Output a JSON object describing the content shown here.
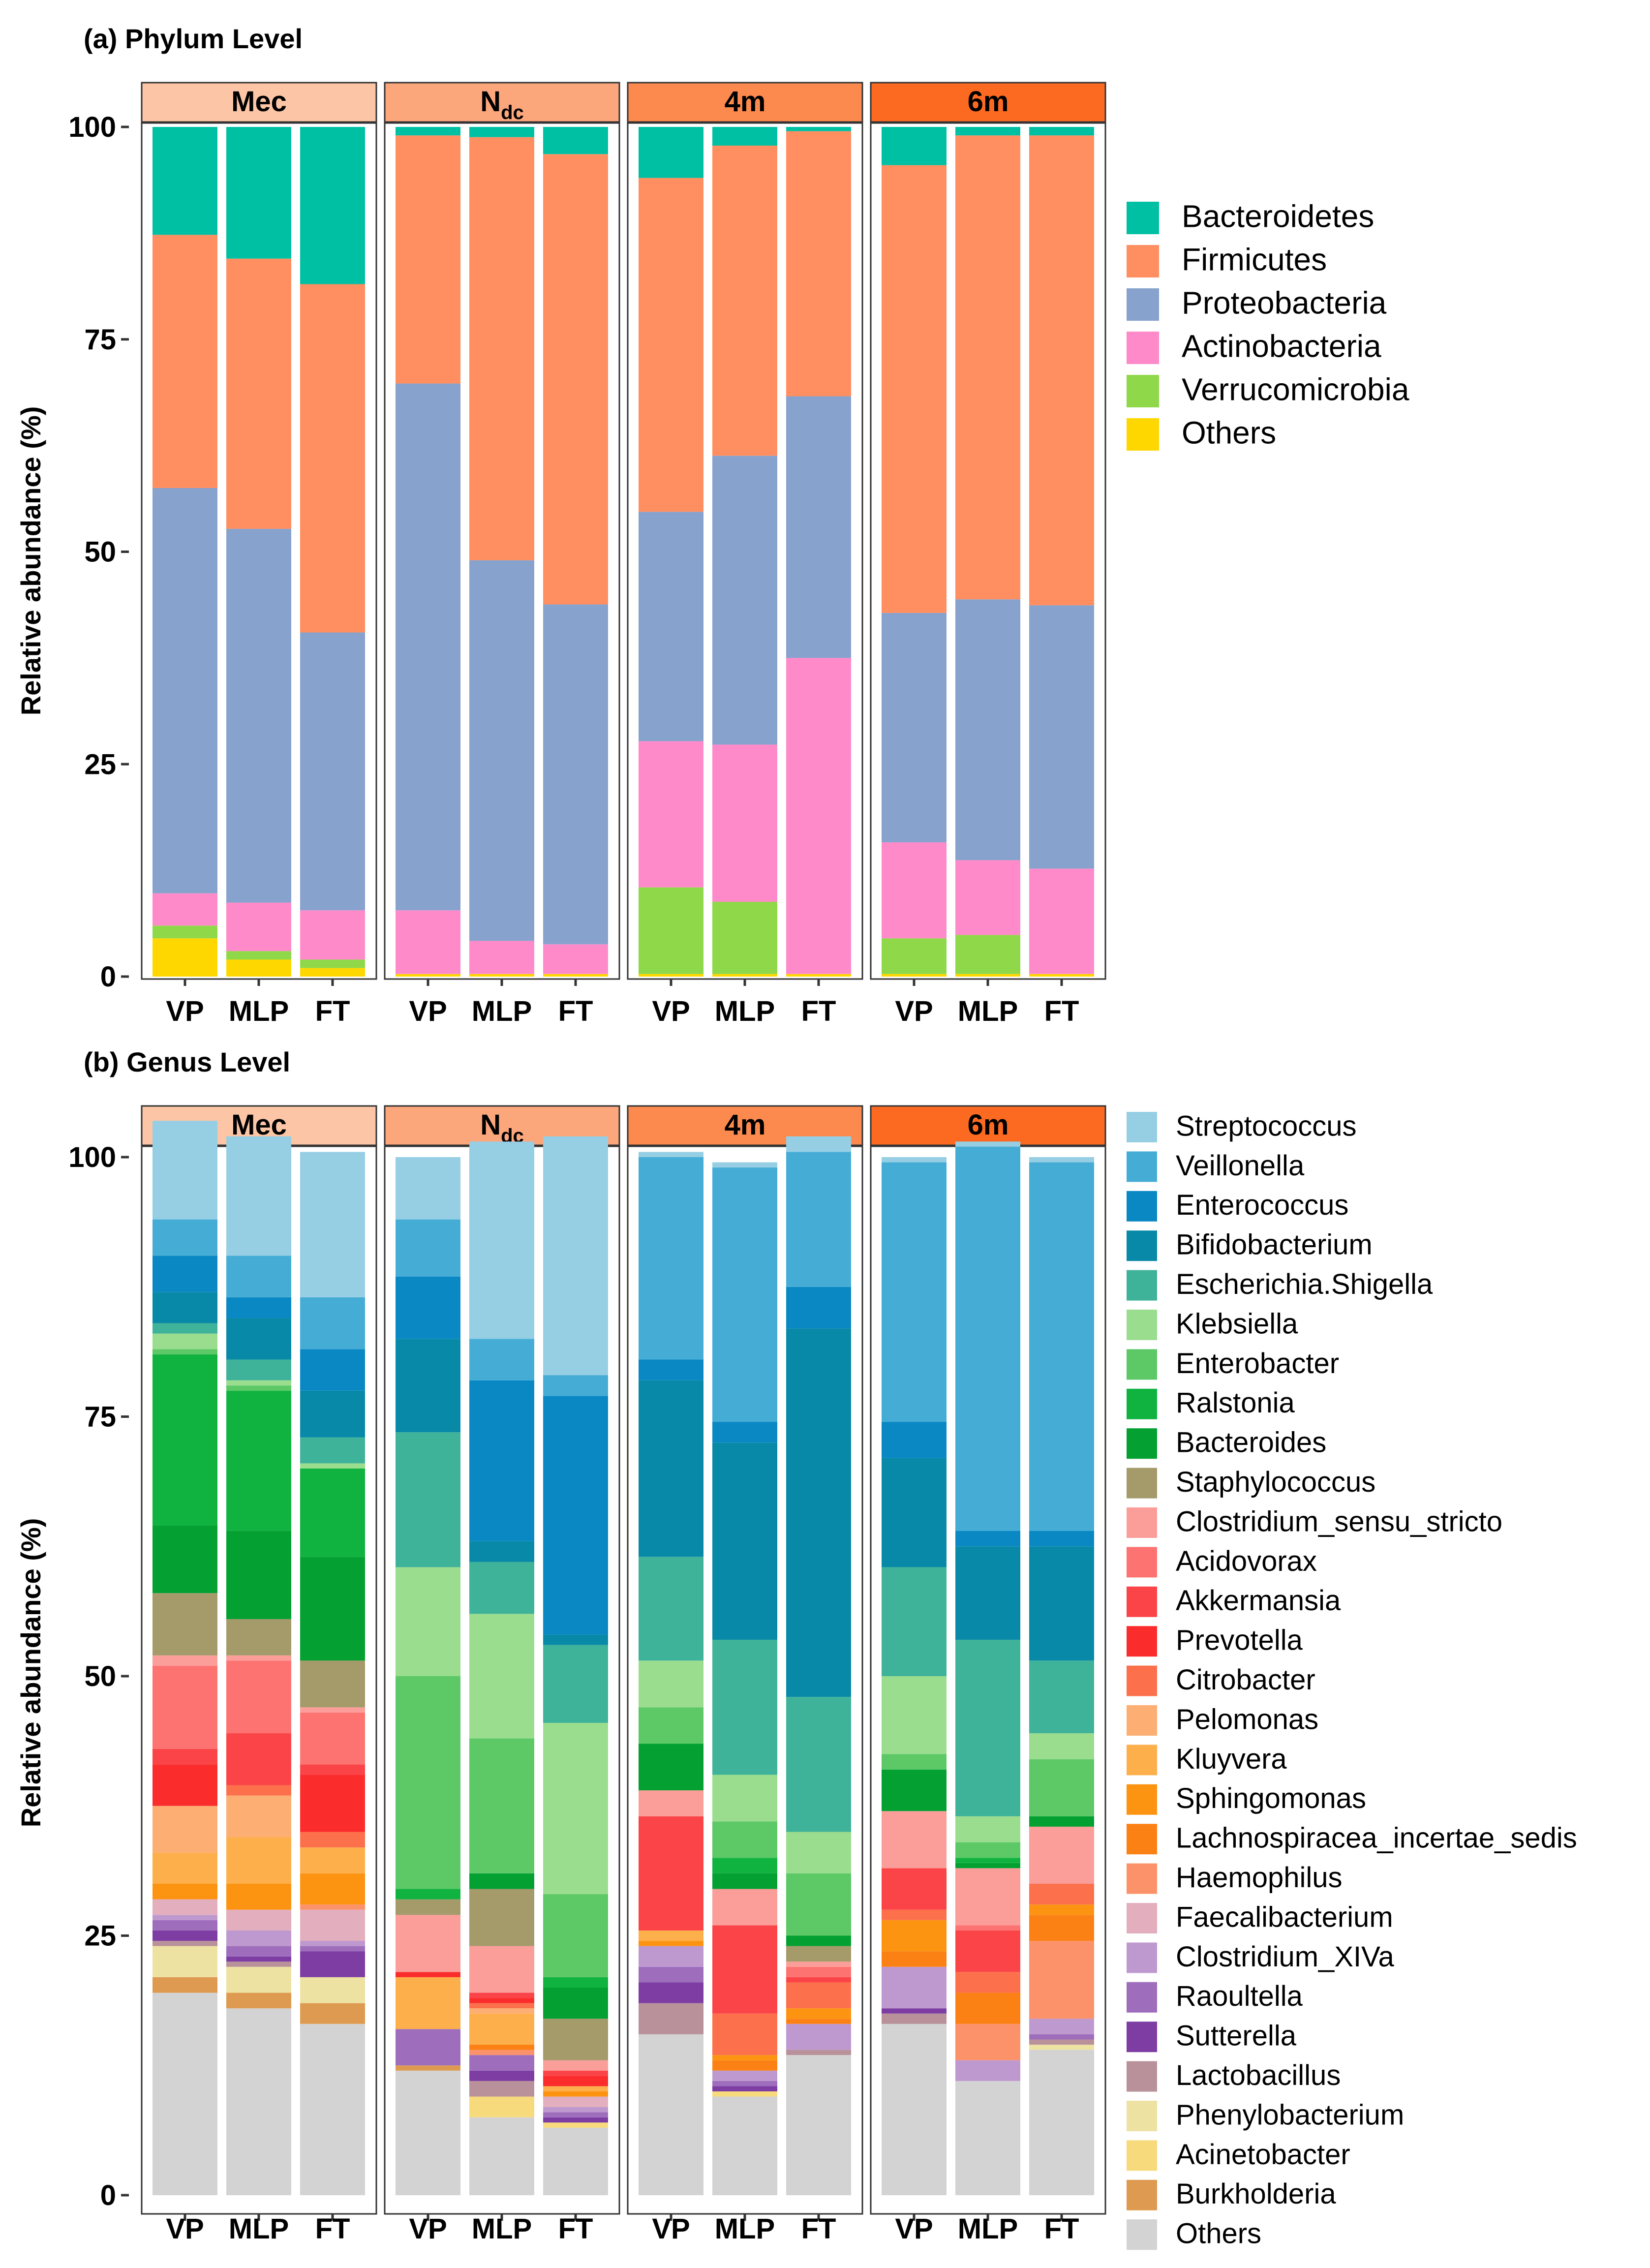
{
  "panels": {
    "a": {
      "title": "(a) Phylum Level"
    },
    "b": {
      "title": "(b) Genus Level"
    }
  },
  "facet_colors": [
    "#FCC6A6",
    "#FCA67C",
    "#FC8A4E",
    "#FC6A22"
  ],
  "chart_data": [
    {
      "type": "bar",
      "stacked": true,
      "title": "(a) Phylum Level",
      "ylabel": "Relative abundance (%)",
      "ylim": [
        0,
        100
      ],
      "yticks": [
        0,
        25,
        50,
        75,
        100
      ],
      "facets": [
        {
          "label": "Mec",
          "sub": ""
        },
        {
          "label": "N",
          "sub": "dc"
        },
        {
          "label": "4m",
          "sub": ""
        },
        {
          "label": "6m",
          "sub": ""
        }
      ],
      "categories": [
        "VP",
        "MLP",
        "FT"
      ],
      "legend": {
        "position": "right",
        "taxa": [
          "Bacteroidetes",
          "Firmicutes",
          "Proteobacteria",
          "Actinobacteria",
          "Verrucomicrobia",
          "Others"
        ]
      },
      "colors": {
        "Others": "#FFD700",
        "Verrucomicrobia": "#8FD84A",
        "Actinobacteria": "#FF8AC9",
        "Proteobacteria": "#87A2CD",
        "Firmicutes": "#FF8E60",
        "Bacteroidetes": "#00C0A3"
      },
      "stack_order": [
        "Others",
        "Verrucomicrobia",
        "Actinobacteria",
        "Proteobacteria",
        "Firmicutes",
        "Bacteroidetes"
      ],
      "bars": [
        [
          {
            "Others": 4.5,
            "Verrucomicrobia": 1.5,
            "Actinobacteria": 3.8,
            "Proteobacteria": 47.7,
            "Firmicutes": 29.8,
            "Bacteroidetes": 12.7
          },
          {
            "Others": 2.0,
            "Verrucomicrobia": 1.0,
            "Actinobacteria": 5.7,
            "Proteobacteria": 44.0,
            "Firmicutes": 31.8,
            "Bacteroidetes": 15.5
          },
          {
            "Others": 1.0,
            "Verrucomicrobia": 1.0,
            "Actinobacteria": 5.8,
            "Proteobacteria": 32.7,
            "Firmicutes": 41.0,
            "Bacteroidetes": 18.5
          }
        ],
        [
          {
            "Others": 0.3,
            "Verrucomicrobia": 0.0,
            "Actinobacteria": 7.5,
            "Proteobacteria": 62.0,
            "Firmicutes": 29.2,
            "Bacteroidetes": 1.0
          },
          {
            "Others": 0.3,
            "Verrucomicrobia": 0.0,
            "Actinobacteria": 3.9,
            "Proteobacteria": 44.8,
            "Firmicutes": 49.8,
            "Bacteroidetes": 1.2
          },
          {
            "Others": 0.3,
            "Verrucomicrobia": 0.0,
            "Actinobacteria": 3.5,
            "Proteobacteria": 40.0,
            "Firmicutes": 53.0,
            "Bacteroidetes": 3.2
          }
        ],
        [
          {
            "Others": 0.3,
            "Verrucomicrobia": 10.2,
            "Actinobacteria": 17.2,
            "Proteobacteria": 27.0,
            "Firmicutes": 39.3,
            "Bacteroidetes": 6.0
          },
          {
            "Others": 0.3,
            "Verrucomicrobia": 8.5,
            "Actinobacteria": 18.5,
            "Proteobacteria": 34.0,
            "Firmicutes": 36.5,
            "Bacteroidetes": 2.2
          },
          {
            "Others": 0.3,
            "Verrucomicrobia": 0.0,
            "Actinobacteria": 37.2,
            "Proteobacteria": 30.8,
            "Firmicutes": 31.2,
            "Bacteroidetes": 0.5
          }
        ],
        [
          {
            "Others": 0.3,
            "Verrucomicrobia": 4.2,
            "Actinobacteria": 11.3,
            "Proteobacteria": 27.0,
            "Firmicutes": 52.7,
            "Bacteroidetes": 4.5
          },
          {
            "Others": 0.3,
            "Verrucomicrobia": 4.6,
            "Actinobacteria": 8.8,
            "Proteobacteria": 30.7,
            "Firmicutes": 54.6,
            "Bacteroidetes": 1.0
          },
          {
            "Others": 0.3,
            "Verrucomicrobia": 0.0,
            "Actinobacteria": 12.4,
            "Proteobacteria": 31.0,
            "Firmicutes": 55.3,
            "Bacteroidetes": 1.0
          }
        ]
      ]
    },
    {
      "type": "bar",
      "stacked": true,
      "title": "(b) Genus Level",
      "ylabel": "Relative abundance (%)",
      "ylim": [
        0,
        100
      ],
      "yticks": [
        0,
        25,
        50,
        75,
        100
      ],
      "facets": [
        {
          "label": "Mec",
          "sub": ""
        },
        {
          "label": "N",
          "sub": "dc"
        },
        {
          "label": "4m",
          "sub": ""
        },
        {
          "label": "6m",
          "sub": ""
        }
      ],
      "categories": [
        "VP",
        "MLP",
        "FT"
      ],
      "legend": {
        "position": "right",
        "taxa": [
          "Streptococcus",
          "Veillonella",
          "Enterococcus",
          "Bifidobacterium",
          "Escherichia.Shigella",
          "Klebsiella",
          "Enterobacter",
          "Ralstonia",
          "Bacteroides",
          "Staphylococcus",
          "Clostridium_sensu_stricto",
          "Acidovorax",
          "Akkermansia",
          "Prevotella",
          "Citrobacter",
          "Pelomonas",
          "Kluyvera",
          "Sphingomonas",
          "Lachnospiracea_incertae_sedis",
          "Haemophilus",
          "Faecalibacterium",
          "Clostridium_XIVa",
          "Raoultella",
          "Sutterella",
          "Lactobacillus",
          "Phenylobacterium",
          "Acinetobacter",
          "Burkholderia",
          "Others"
        ]
      },
      "colors": {
        "Streptococcus": "#96CEE4",
        "Veillonella": "#45ADD5",
        "Enterococcus": "#0A88C4",
        "Bifidobacterium": "#0889A7",
        "Escherichia.Shigella": "#3FB29A",
        "Klebsiella": "#9ADD8E",
        "Enterobacter": "#5CC866",
        "Ralstonia": "#10B340",
        "Bacteroides": "#04A032",
        "Staphylococcus": "#A49A6A",
        "Clostridium_sensu_stricto": "#FB9D99",
        "Acidovorax": "#FD7371",
        "Akkermansia": "#FB4448",
        "Prevotella": "#FB2C2C",
        "Citrobacter": "#FC704C",
        "Pelomonas": "#FDAE73",
        "Kluyvera": "#FDAF4C",
        "Sphingomonas": "#FC9412",
        "Lachnospiracea_incertae_sedis": "#FC8114",
        "Haemophilus": "#FC926A",
        "Faecalibacterium": "#E3AEBE",
        "Clostridium_XIVa": "#BE99CF",
        "Raoultella": "#9E6EBD",
        "Sutterella": "#7D3DA3",
        "Lactobacillus": "#B8919A",
        "Phenylobacterium": "#EDE2A2",
        "Acinetobacter": "#F7DA7C",
        "Burkholderia": "#DE9A50",
        "Others": "#D3D3D3"
      },
      "stack_order": [
        "Others",
        "Burkholderia",
        "Acinetobacter",
        "Phenylobacterium",
        "Lactobacillus",
        "Sutterella",
        "Raoultella",
        "Clostridium_XIVa",
        "Faecalibacterium",
        "Haemophilus",
        "Lachnospiracea_incertae_sedis",
        "Sphingomonas",
        "Kluyvera",
        "Pelomonas",
        "Citrobacter",
        "Prevotella",
        "Akkermansia",
        "Acidovorax",
        "Clostridium_sensu_stricto",
        "Staphylococcus",
        "Bacteroides",
        "Ralstonia",
        "Enterobacter",
        "Klebsiella",
        "Escherichia.Shigella",
        "Bifidobacterium",
        "Enterococcus",
        "Veillonella",
        "Streptococcus"
      ],
      "bars": [
        [
          {
            "Others": 19.5,
            "Burkholderia": 1.5,
            "Acinetobacter": 0.0,
            "Phenylobacterium": 3.0,
            "Lactobacillus": 0.5,
            "Sutterella": 1.0,
            "Raoultella": 1.0,
            "Clostridium_XIVa": 0.5,
            "Faecalibacterium": 1.5,
            "Haemophilus": 0.0,
            "Lachnospiracea_incertae_sedis": 0.0,
            "Sphingomonas": 1.5,
            "Kluyvera": 3.0,
            "Pelomonas": 4.5,
            "Citrobacter": 0.0,
            "Prevotella": 4.0,
            "Akkermansia": 1.5,
            "Acidovorax": 8.0,
            "Clostridium_sensu_stricto": 1.0,
            "Staphylococcus": 6.0,
            "Bacteroides": 6.5,
            "Ralstonia": 16.5,
            "Enterobacter": 0.5,
            "Klebsiella": 1.5,
            "Escherichia.Shigella": 1.0,
            "Bifidobacterium": 3.0,
            "Enterococcus": 3.5,
            "Veillonella": 3.5,
            "Streptococcus": 9.5
          },
          {
            "Others": 18.0,
            "Burkholderia": 1.5,
            "Acinetobacter": 0.0,
            "Phenylobacterium": 2.5,
            "Lactobacillus": 0.5,
            "Sutterella": 0.5,
            "Raoultella": 1.0,
            "Clostridium_XIVa": 1.5,
            "Faecalibacterium": 2.0,
            "Haemophilus": 0.0,
            "Lachnospiracea_incertae_sedis": 0.0,
            "Sphingomonas": 2.5,
            "Kluyvera": 4.5,
            "Pelomonas": 4.0,
            "Citrobacter": 1.0,
            "Prevotella": 0.0,
            "Akkermansia": 5.0,
            "Acidovorax": 7.0,
            "Clostridium_sensu_stricto": 0.5,
            "Staphylococcus": 3.5,
            "Bacteroides": 8.5,
            "Ralstonia": 13.5,
            "Enterobacter": 0.5,
            "Klebsiella": 0.5,
            "Escherichia.Shigella": 2.0,
            "Bifidobacterium": 4.0,
            "Enterococcus": 2.0,
            "Veillonella": 4.0,
            "Streptococcus": 11.5
          },
          {
            "Others": 16.5,
            "Burkholderia": 2.0,
            "Acinetobacter": 0.0,
            "Phenylobacterium": 2.5,
            "Lactobacillus": 0.0,
            "Sutterella": 2.5,
            "Raoultella": 0.5,
            "Clostridium_XIVa": 0.5,
            "Faecalibacterium": 3.0,
            "Haemophilus": 0.5,
            "Lachnospiracea_incertae_sedis": 0.0,
            "Sphingomonas": 3.0,
            "Kluyvera": 2.5,
            "Pelomonas": 0.0,
            "Citrobacter": 1.5,
            "Prevotella": 5.5,
            "Akkermansia": 1.0,
            "Acidovorax": 5.0,
            "Clostridium_sensu_stricto": 0.5,
            "Staphylococcus": 4.5,
            "Bacteroides": 10.0,
            "Ralstonia": 8.5,
            "Enterobacter": 0.0,
            "Klebsiella": 0.5,
            "Escherichia.Shigella": 2.5,
            "Bifidobacterium": 4.5,
            "Enterococcus": 4.0,
            "Veillonella": 5.0,
            "Streptococcus": 14.0
          }
        ],
        [
          {
            "Others": 12.0,
            "Burkholderia": 0.5,
            "Acinetobacter": 0.0,
            "Phenylobacterium": 0.0,
            "Lactobacillus": 0.0,
            "Sutterella": 0.0,
            "Raoultella": 3.5,
            "Clostridium_XIVa": 0.0,
            "Faecalibacterium": 0.0,
            "Haemophilus": 0.0,
            "Lachnospiracea_incertae_sedis": 0.0,
            "Sphingomonas": 0.0,
            "Kluyvera": 5.0,
            "Pelomonas": 0.0,
            "Citrobacter": 0.0,
            "Prevotella": 0.5,
            "Akkermansia": 0.0,
            "Acidovorax": 0.0,
            "Clostridium_sensu_stricto": 5.5,
            "Staphylococcus": 1.5,
            "Bacteroides": 0.0,
            "Ralstonia": 1.0,
            "Enterobacter": 20.5,
            "Klebsiella": 10.5,
            "Escherichia.Shigella": 13.0,
            "Bifidobacterium": 9.0,
            "Enterococcus": 6.0,
            "Veillonella": 5.5,
            "Streptococcus": 6.0
          },
          {
            "Others": 7.5,
            "Burkholderia": 0.0,
            "Acinetobacter": 2.0,
            "Phenylobacterium": 0.0,
            "Lactobacillus": 1.5,
            "Sutterella": 1.0,
            "Raoultella": 1.5,
            "Clostridium_XIVa": 0.0,
            "Faecalibacterium": 0.0,
            "Haemophilus": 0.5,
            "Lachnospiracea_incertae_sedis": 0.5,
            "Sphingomonas": 0.0,
            "Kluyvera": 3.0,
            "Pelomonas": 0.5,
            "Citrobacter": 0.5,
            "Prevotella": 0.5,
            "Akkermansia": 0.5,
            "Acidovorax": 0.0,
            "Clostridium_sensu_stricto": 4.5,
            "Staphylococcus": 5.5,
            "Bacteroides": 1.5,
            "Ralstonia": 0.0,
            "Enterobacter": 13.0,
            "Klebsiella": 12.0,
            "Escherichia.Shigella": 5.0,
            "Bifidobacterium": 2.0,
            "Enterococcus": 15.5,
            "Veillonella": 4.0,
            "Streptococcus": 19.0
          },
          {
            "Others": 6.5,
            "Burkholderia": 0.0,
            "Acinetobacter": 0.5,
            "Phenylobacterium": 0.0,
            "Lactobacillus": 0.0,
            "Sutterella": 0.5,
            "Raoultella": 0.5,
            "Clostridium_XIVa": 0.5,
            "Faecalibacterium": 1.0,
            "Haemophilus": 0.0,
            "Lachnospiracea_incertae_sedis": 0.0,
            "Sphingomonas": 0.5,
            "Kluyvera": 0.5,
            "Pelomonas": 0.0,
            "Citrobacter": 0.0,
            "Prevotella": 1.0,
            "Akkermansia": 0.5,
            "Acidovorax": 0.0,
            "Clostridium_sensu_stricto": 1.0,
            "Staphylococcus": 4.0,
            "Bacteroides": 3.0,
            "Ralstonia": 1.0,
            "Enterobacter": 8.0,
            "Klebsiella": 16.5,
            "Escherichia.Shigella": 7.5,
            "Bifidobacterium": 1.0,
            "Enterococcus": 23.0,
            "Veillonella": 2.0,
            "Streptococcus": 23.0
          }
        ],
        [
          {
            "Others": 15.5,
            "Burkholderia": 0.0,
            "Acinetobacter": 0.0,
            "Phenylobacterium": 0.0,
            "Lactobacillus": 3.0,
            "Sutterella": 2.0,
            "Raoultella": 1.5,
            "Clostridium_XIVa": 2.0,
            "Faecalibacterium": 0.0,
            "Haemophilus": 0.0,
            "Lachnospiracea_incertae_sedis": 0.0,
            "Sphingomonas": 0.5,
            "Kluyvera": 1.0,
            "Pelomonas": 0.0,
            "Citrobacter": 0.0,
            "Prevotella": 0.0,
            "Akkermansia": 11.0,
            "Acidovorax": 0.0,
            "Clostridium_sensu_stricto": 2.5,
            "Staphylococcus": 0.0,
            "Bacteroides": 4.5,
            "Ralstonia": 0.0,
            "Enterobacter": 3.5,
            "Klebsiella": 4.5,
            "Escherichia.Shigella": 10.0,
            "Bifidobacterium": 17.0,
            "Enterococcus": 2.0,
            "Veillonella": 19.5,
            "Streptococcus": 0.5
          },
          {
            "Others": 9.5,
            "Burkholderia": 0.0,
            "Acinetobacter": 0.5,
            "Phenylobacterium": 0.0,
            "Lactobacillus": 0.0,
            "Sutterella": 0.5,
            "Raoultella": 0.5,
            "Clostridium_XIVa": 1.0,
            "Faecalibacterium": 0.0,
            "Haemophilus": 0.0,
            "Lachnospiracea_incertae_sedis": 1.0,
            "Sphingomonas": 0.5,
            "Kluyvera": 0.0,
            "Pelomonas": 0.0,
            "Citrobacter": 4.0,
            "Prevotella": 0.0,
            "Akkermansia": 8.5,
            "Acidovorax": 0.0,
            "Clostridium_sensu_stricto": 3.5,
            "Staphylococcus": 0.0,
            "Bacteroides": 1.5,
            "Ralstonia": 1.5,
            "Enterobacter": 3.5,
            "Klebsiella": 4.5,
            "Escherichia.Shigella": 13.0,
            "Bifidobacterium": 19.0,
            "Enterococcus": 2.0,
            "Veillonella": 24.5,
            "Streptococcus": 0.5
          },
          {
            "Others": 13.5,
            "Burkholderia": 0.0,
            "Acinetobacter": 0.0,
            "Phenylobacterium": 0.0,
            "Lactobacillus": 0.5,
            "Sutterella": 0.0,
            "Raoultella": 0.0,
            "Clostridium_XIVa": 2.5,
            "Faecalibacterium": 0.0,
            "Haemophilus": 0.0,
            "Lachnospiracea_incertae_sedis": 0.5,
            "Sphingomonas": 1.0,
            "Kluyvera": 0.0,
            "Pelomonas": 0.0,
            "Citrobacter": 2.5,
            "Prevotella": 0.0,
            "Akkermansia": 0.5,
            "Acidovorax": 1.0,
            "Clostridium_sensu_stricto": 0.5,
            "Staphylococcus": 1.5,
            "Bacteroides": 1.0,
            "Ralstonia": 0.0,
            "Enterobacter": 6.0,
            "Klebsiella": 4.0,
            "Escherichia.Shigella": 13.0,
            "Bifidobacterium": 35.5,
            "Enterococcus": 4.0,
            "Veillonella": 13.0,
            "Streptococcus": 1.5
          }
        ],
        [
          {
            "Others": 16.5,
            "Burkholderia": 0.0,
            "Acinetobacter": 0.0,
            "Phenylobacterium": 0.0,
            "Lactobacillus": 1.0,
            "Sutterella": 0.5,
            "Raoultella": 0.0,
            "Clostridium_XIVa": 4.0,
            "Faecalibacterium": 0.0,
            "Haemophilus": 0.0,
            "Lachnospiracea_incertae_sedis": 1.5,
            "Sphingomonas": 3.0,
            "Kluyvera": 0.0,
            "Pelomonas": 0.0,
            "Citrobacter": 1.0,
            "Prevotella": 0.0,
            "Akkermansia": 4.0,
            "Acidovorax": 0.0,
            "Clostridium_sensu_stricto": 5.5,
            "Staphylococcus": 0.0,
            "Bacteroides": 4.0,
            "Ralstonia": 0.0,
            "Enterobacter": 1.5,
            "Klebsiella": 7.5,
            "Escherichia.Shigella": 10.5,
            "Bifidobacterium": 10.5,
            "Enterococcus": 3.5,
            "Veillonella": 25.0,
            "Streptococcus": 0.5
          },
          {
            "Others": 11.0,
            "Burkholderia": 0.0,
            "Acinetobacter": 0.0,
            "Phenylobacterium": 0.0,
            "Lactobacillus": 0.0,
            "Sutterella": 0.0,
            "Raoultella": 0.0,
            "Clostridium_XIVa": 2.0,
            "Faecalibacterium": 0.0,
            "Haemophilus": 3.5,
            "Lachnospiracea_incertae_sedis": 3.0,
            "Sphingomonas": 0.0,
            "Kluyvera": 0.0,
            "Pelomonas": 0.0,
            "Citrobacter": 2.0,
            "Prevotella": 0.0,
            "Akkermansia": 4.0,
            "Acidovorax": 0.5,
            "Clostridium_sensu_stricto": 5.5,
            "Staphylococcus": 0.0,
            "Bacteroides": 0.5,
            "Ralstonia": 0.5,
            "Enterobacter": 1.5,
            "Klebsiella": 2.5,
            "Escherichia.Shigella": 17.0,
            "Bifidobacterium": 9.0,
            "Enterococcus": 1.5,
            "Veillonella": 37.0,
            "Streptococcus": 0.5
          },
          {
            "Others": 14.0,
            "Burkholderia": 0.0,
            "Acinetobacter": 0.0,
            "Phenylobacterium": 0.5,
            "Lactobacillus": 0.5,
            "Sutterella": 0.0,
            "Raoultella": 0.5,
            "Clostridium_XIVa": 1.5,
            "Faecalibacterium": 0.0,
            "Haemophilus": 7.5,
            "Lachnospiracea_incertae_sedis": 2.5,
            "Sphingomonas": 1.0,
            "Kluyvera": 0.0,
            "Pelomonas": 0.0,
            "Citrobacter": 2.0,
            "Prevotella": 0.0,
            "Akkermansia": 0.0,
            "Acidovorax": 0.0,
            "Clostridium_sensu_stricto": 5.5,
            "Staphylococcus": 0.0,
            "Bacteroides": 1.0,
            "Ralstonia": 0.0,
            "Enterobacter": 5.5,
            "Klebsiella": 2.5,
            "Escherichia.Shigella": 7.0,
            "Bifidobacterium": 11.0,
            "Enterococcus": 1.5,
            "Veillonella": 35.5,
            "Streptococcus": 0.5
          }
        ]
      ]
    }
  ]
}
